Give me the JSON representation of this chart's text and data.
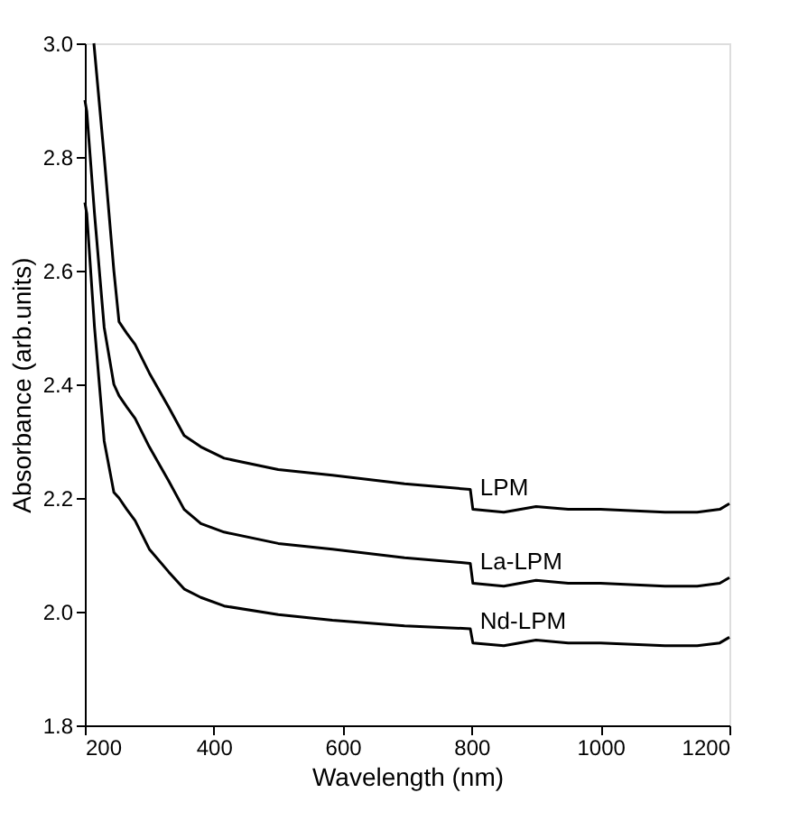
{
  "chart_data": {
    "type": "line",
    "xlabel": "Wavelength (nm)",
    "ylabel": "Absorbance (arb.units)",
    "xlim": [
      200,
      1200
    ],
    "xticks": [
      200,
      400,
      600,
      800,
      1000,
      1200
    ],
    "ylim": [
      1.8,
      3.0
    ],
    "yticks": [
      1.8,
      {
        "value": 2,
        "label": "2.0"
      },
      2.2,
      2.4,
      2.6,
      2.8,
      {
        "value": 3,
        "label": "3.0"
      }
    ],
    "grid": false,
    "legend": false,
    "marker": "none",
    "line_style": "solid",
    "series": [
      {
        "name": "LPM",
        "color": "#000000",
        "x": [
          214,
          230,
          245,
          253,
          265,
          278,
          300,
          330,
          354,
          380,
          416,
          500,
          584,
          696,
          798,
          802,
          850,
          900,
          950,
          1000,
          1100,
          1150,
          1185,
          1200
        ],
        "values": [
          3.0,
          2.8,
          2.6,
          2.51,
          2.49,
          2.47,
          2.42,
          2.36,
          2.31,
          2.29,
          2.27,
          2.25,
          2.24,
          2.225,
          2.215,
          2.18,
          2.175,
          2.185,
          2.18,
          2.18,
          2.175,
          2.175,
          2.18,
          2.19
        ]
      },
      {
        "name": "La-LPM",
        "color": "#000000",
        "x": [
          200,
          203,
          215,
          230,
          245,
          253,
          265,
          278,
          300,
          330,
          354,
          380,
          416,
          500,
          584,
          696,
          798,
          802,
          850,
          900,
          950,
          1000,
          1100,
          1150,
          1185,
          1200
        ],
        "values": [
          2.9,
          2.88,
          2.7,
          2.5,
          2.4,
          2.38,
          2.36,
          2.34,
          2.29,
          2.23,
          2.18,
          2.155,
          2.14,
          2.12,
          2.11,
          2.095,
          2.085,
          2.05,
          2.045,
          2.055,
          2.05,
          2.05,
          2.045,
          2.045,
          2.05,
          2.06
        ]
      },
      {
        "name": "Nd-LPM",
        "color": "#000000",
        "x": [
          200,
          203,
          215,
          230,
          245,
          253,
          265,
          278,
          300,
          330,
          354,
          380,
          416,
          500,
          584,
          696,
          798,
          802,
          850,
          900,
          950,
          1000,
          1100,
          1150,
          1185,
          1200
        ],
        "values": [
          2.72,
          2.7,
          2.5,
          2.3,
          2.21,
          2.2,
          2.18,
          2.16,
          2.11,
          2.07,
          2.04,
          2.025,
          2.01,
          1.995,
          1.985,
          1.975,
          1.97,
          1.945,
          1.94,
          1.95,
          1.945,
          1.945,
          1.94,
          1.94,
          1.945,
          1.955
        ]
      }
    ]
  }
}
